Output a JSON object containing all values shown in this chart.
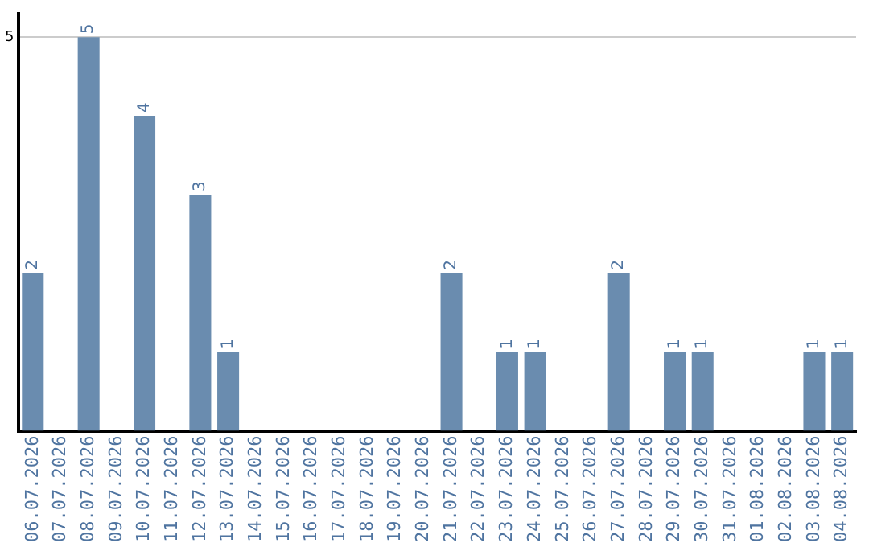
{
  "chart_data": {
    "type": "bar",
    "categories": [
      "06.07.2026",
      "07.07.2026",
      "08.07.2026",
      "09.07.2026",
      "10.07.2026",
      "11.07.2026",
      "12.07.2026",
      "13.07.2026",
      "14.07.2026",
      "15.07.2026",
      "16.07.2026",
      "17.07.2026",
      "18.07.2026",
      "19.07.2026",
      "20.07.2026",
      "21.07.2026",
      "22.07.2026",
      "23.07.2026",
      "24.07.2026",
      "25.07.2026",
      "26.07.2026",
      "27.07.2026",
      "28.07.2026",
      "29.07.2026",
      "30.07.2026",
      "31.07.2026",
      "01.08.2026",
      "02.08.2026",
      "03.08.2026",
      "04.08.2026"
    ],
    "values": [
      2,
      0,
      5,
      0,
      4,
      0,
      3,
      1,
      0,
      0,
      0,
      0,
      0,
      0,
      0,
      2,
      0,
      1,
      1,
      0,
      0,
      2,
      0,
      1,
      1,
      0,
      0,
      0,
      1,
      1
    ],
    "value_labels": [
      "2",
      null,
      "5",
      null,
      "4",
      null,
      "3",
      "1",
      null,
      null,
      null,
      null,
      null,
      null,
      null,
      "2",
      null,
      "1",
      "1",
      null,
      null,
      "2",
      null,
      "1",
      "1",
      null,
      null,
      null,
      "1",
      "1"
    ],
    "color": "#6a8caf",
    "ylim": [
      0,
      5.3
    ],
    "yticks": [
      5
    ],
    "grid": "y",
    "legend": false
  }
}
